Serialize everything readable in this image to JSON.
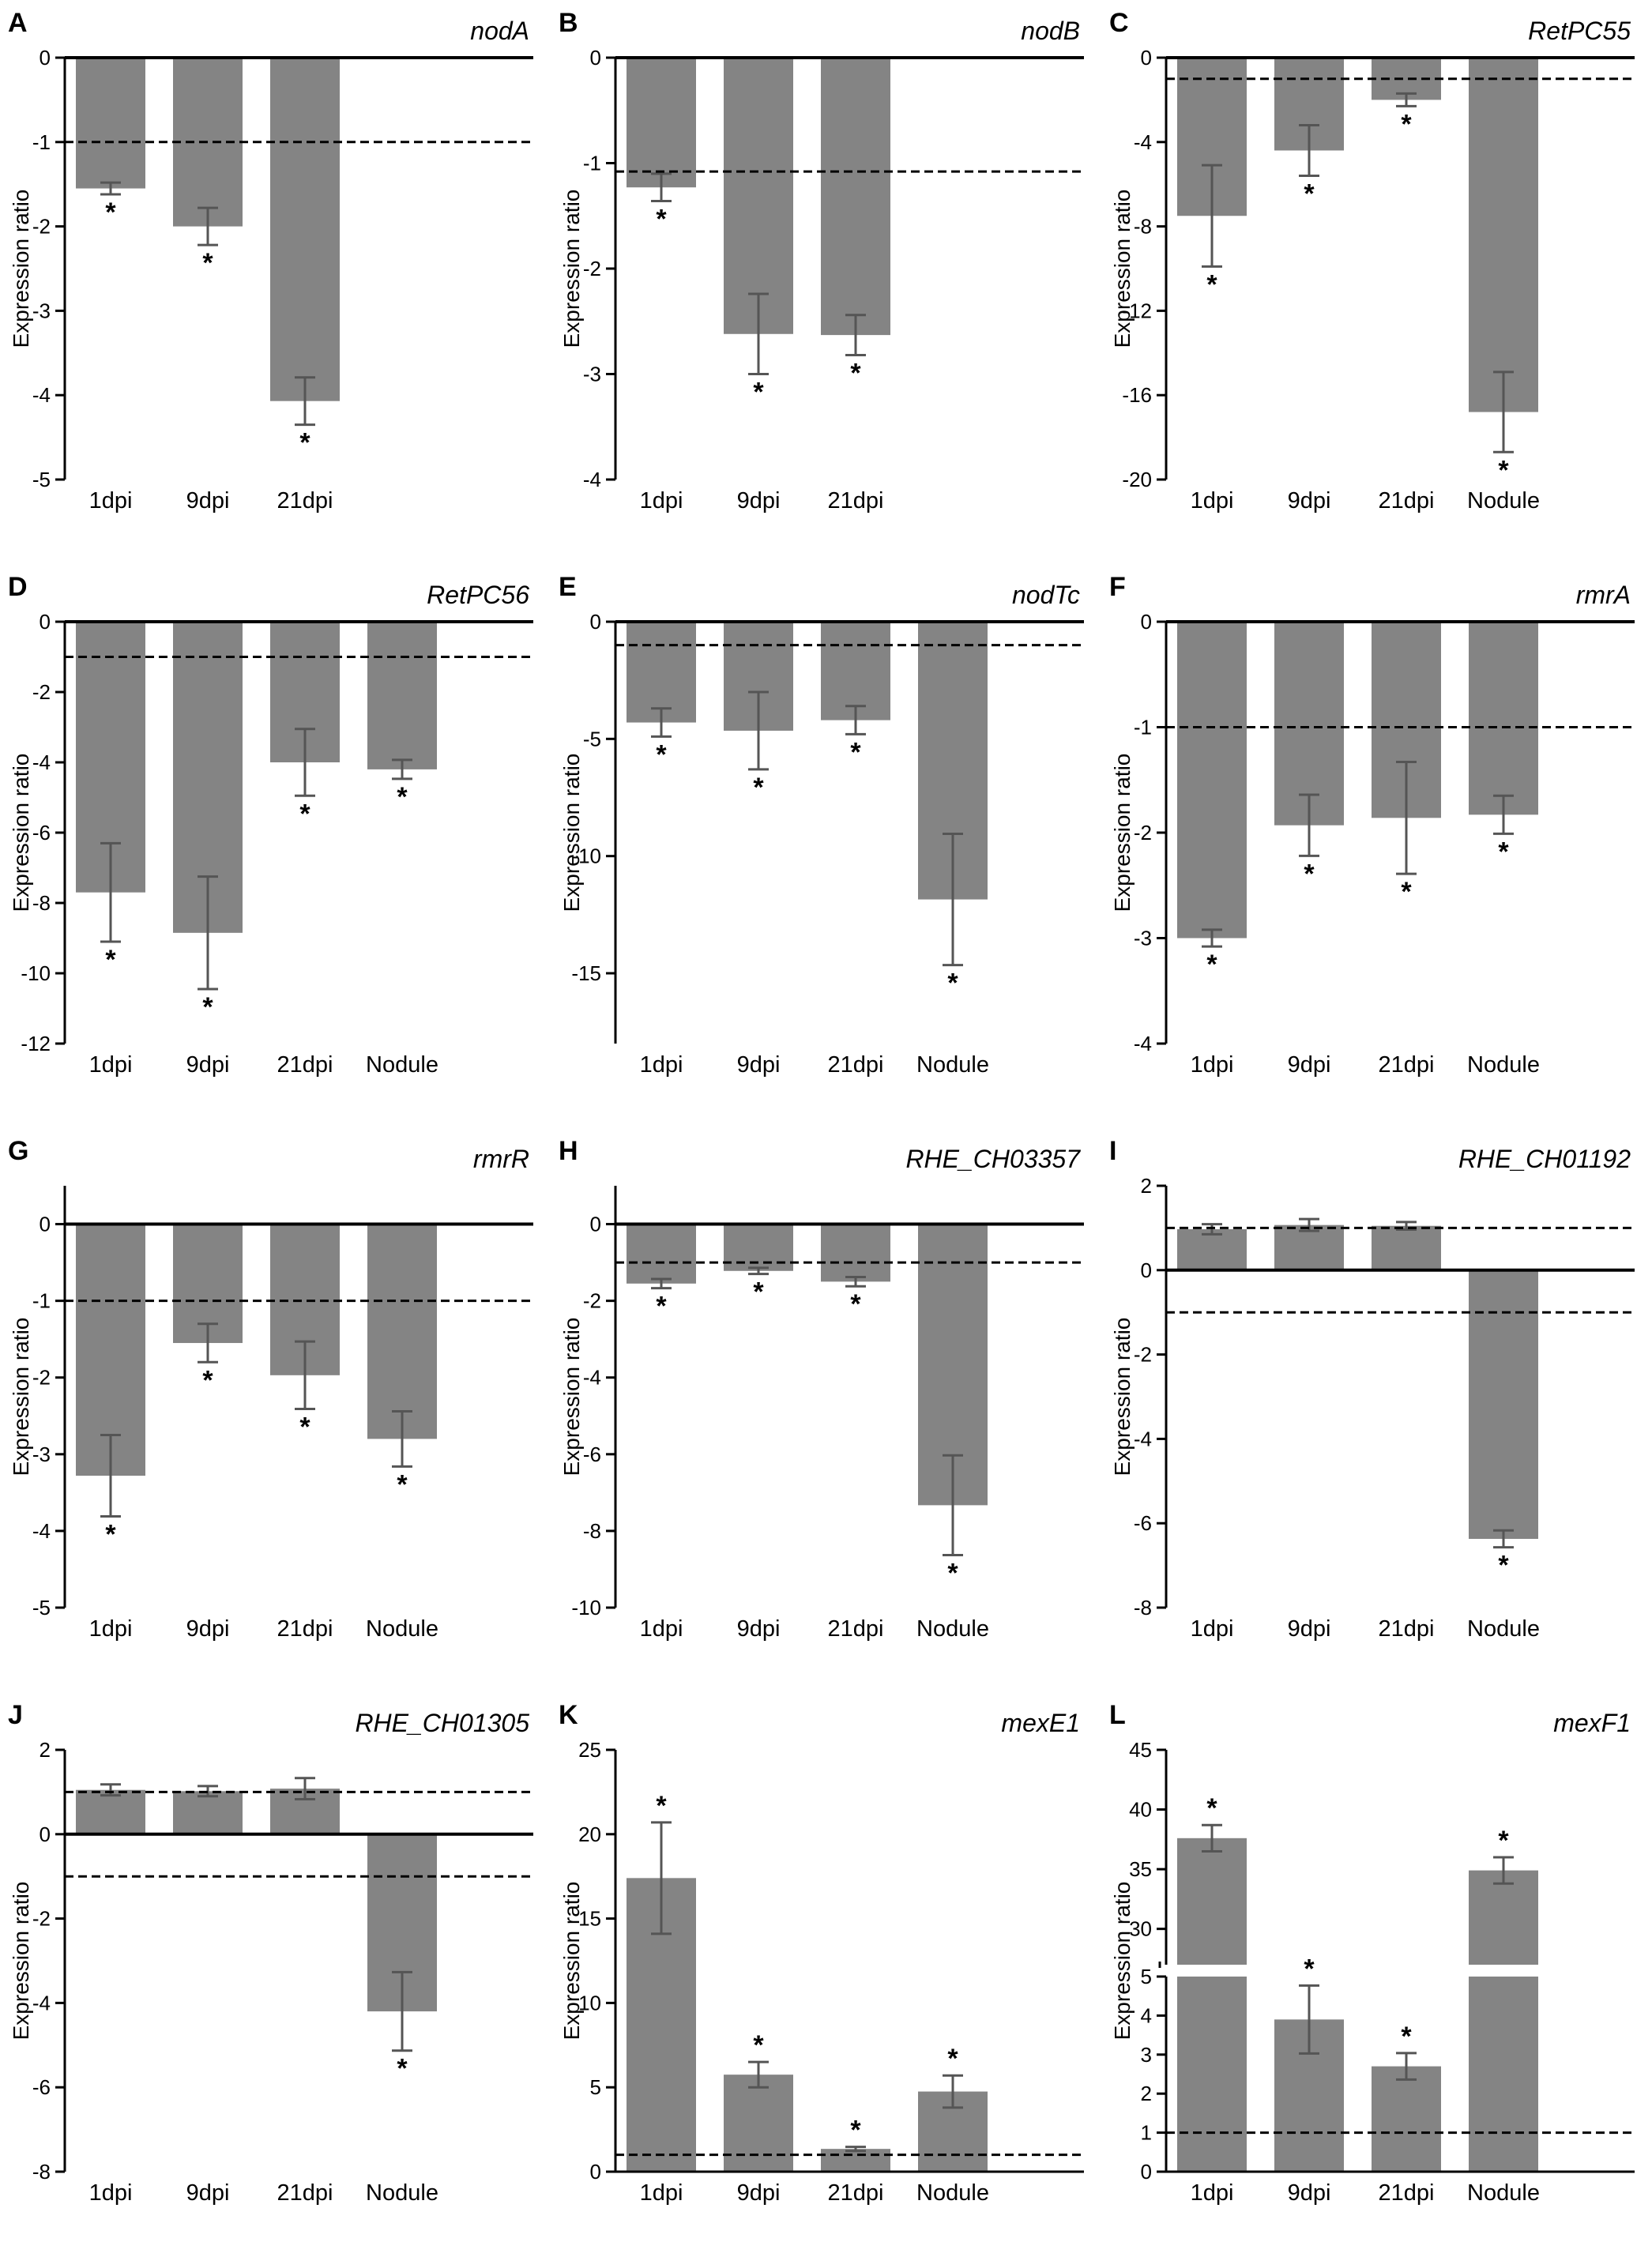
{
  "chart_data": [
    {
      "panel": "A",
      "type": "bar",
      "title": "nodA",
      "ylabel": "Expression ratio",
      "categories": [
        "1dpi",
        "9dpi",
        "21dpi"
      ],
      "values": [
        -1.55,
        -2.0,
        -4.07
      ],
      "errors": [
        0.07,
        0.22,
        0.28
      ],
      "significant": [
        true,
        true,
        true
      ],
      "ylim": [
        -5,
        0
      ],
      "yticks": [
        -5,
        -4,
        -3,
        -2,
        -1,
        0
      ],
      "threshold_lines": [
        -1
      ],
      "zero_line": true
    },
    {
      "panel": "B",
      "type": "bar",
      "title": "nodB",
      "ylabel": "Expression ratio",
      "categories": [
        "1dpi",
        "9dpi",
        "21dpi"
      ],
      "values": [
        -1.23,
        -2.62,
        -2.63
      ],
      "errors": [
        0.13,
        0.38,
        0.19
      ],
      "significant": [
        true,
        true,
        true
      ],
      "ylim": [
        -4,
        0
      ],
      "yticks": [
        -4,
        -3,
        -2,
        -1,
        0
      ],
      "threshold_lines": [
        -1.08
      ],
      "zero_line": true
    },
    {
      "panel": "C",
      "type": "bar",
      "title": "RetPC55",
      "ylabel": "Expression ratio",
      "categories": [
        "1dpi",
        "9dpi",
        "21dpi",
        "Nodule"
      ],
      "values": [
        -7.5,
        -4.4,
        -2.0,
        -16.8
      ],
      "errors": [
        2.4,
        1.2,
        0.3,
        1.9
      ],
      "significant": [
        true,
        true,
        true,
        true
      ],
      "ylim": [
        -20,
        0
      ],
      "yticks": [
        -20,
        -16,
        -12,
        -8,
        -4,
        0
      ],
      "threshold_lines": [
        -1
      ],
      "zero_line": true
    },
    {
      "panel": "D",
      "type": "bar",
      "title": "RetPC56",
      "ylabel": "Expression ratio",
      "categories": [
        "1dpi",
        "9dpi",
        "21dpi",
        "Nodule"
      ],
      "values": [
        -7.7,
        -8.85,
        -4.0,
        -4.2
      ],
      "errors": [
        1.4,
        1.6,
        0.95,
        0.27
      ],
      "significant": [
        true,
        true,
        true,
        true
      ],
      "ylim": [
        -12,
        0
      ],
      "yticks": [
        -12,
        -10,
        -8,
        -6,
        -4,
        -2,
        0
      ],
      "threshold_lines": [
        -1
      ],
      "zero_line": true
    },
    {
      "panel": "E",
      "type": "bar",
      "title": "nodTc",
      "ylabel": "Expression ratio",
      "categories": [
        "1dpi",
        "9dpi",
        "21dpi",
        "Nodule"
      ],
      "values": [
        -4.3,
        -4.65,
        -4.2,
        -11.85
      ],
      "errors": [
        0.6,
        1.65,
        0.6,
        2.8
      ],
      "significant": [
        true,
        true,
        true,
        true
      ],
      "ylim": [
        -18,
        0
      ],
      "yticks": [
        -15,
        -10,
        -5,
        0
      ],
      "threshold_lines": [
        -1
      ],
      "zero_line": true
    },
    {
      "panel": "F",
      "type": "bar",
      "title": "rmrA",
      "ylabel": "Expression ratio",
      "categories": [
        "1dpi",
        "9dpi",
        "21dpi",
        "Nodule"
      ],
      "values": [
        -3.0,
        -1.93,
        -1.86,
        -1.83
      ],
      "errors": [
        0.08,
        0.29,
        0.53,
        0.18
      ],
      "significant": [
        true,
        true,
        true,
        true
      ],
      "ylim": [
        -4,
        0
      ],
      "yticks": [
        -4,
        -3,
        -2,
        -1,
        0
      ],
      "threshold_lines": [
        -1
      ],
      "zero_line": true
    },
    {
      "panel": "G",
      "type": "bar",
      "title": "rmrR",
      "ylabel": "Expression ratio",
      "categories": [
        "1dpi",
        "9dpi",
        "21dpi",
        "Nodule"
      ],
      "values": [
        -3.28,
        -1.55,
        -1.97,
        -2.8
      ],
      "errors": [
        0.53,
        0.25,
        0.44,
        0.36
      ],
      "significant": [
        true,
        true,
        true,
        true
      ],
      "ylim": [
        -5,
        0.5
      ],
      "yticks": [
        -5,
        -4,
        -3,
        -2,
        -1,
        0
      ],
      "threshold_lines": [
        -1
      ],
      "zero_line": true
    },
    {
      "panel": "H",
      "type": "bar",
      "title": "RHE_CH03357",
      "ylabel": "Expression ratio",
      "categories": [
        "1dpi",
        "9dpi",
        "21dpi",
        "Nodule"
      ],
      "values": [
        -1.55,
        -1.22,
        -1.5,
        -7.33
      ],
      "errors": [
        0.12,
        0.08,
        0.12,
        1.3
      ],
      "significant": [
        true,
        true,
        true,
        true
      ],
      "ylim": [
        -10,
        1
      ],
      "yticks": [
        -10,
        -8,
        -6,
        -4,
        -2,
        0
      ],
      "threshold_lines": [
        -1
      ],
      "zero_line": true
    },
    {
      "panel": "I",
      "type": "bar",
      "title": "RHE_CH01192",
      "ylabel": "Expression ratio",
      "categories": [
        "1dpi",
        "9dpi",
        "21dpi",
        "Nodule"
      ],
      "values": [
        0.97,
        1.07,
        1.05,
        -6.37
      ],
      "errors": [
        0.12,
        0.14,
        0.09,
        0.2
      ],
      "significant": [
        false,
        false,
        false,
        true
      ],
      "ylim": [
        -8,
        2
      ],
      "yticks": [
        -8,
        -6,
        -4,
        -2,
        0,
        2
      ],
      "threshold_lines": [
        1,
        -1
      ],
      "zero_line": true
    },
    {
      "panel": "J",
      "type": "bar",
      "title": "RHE_CH01305",
      "ylabel": "Expression ratio",
      "categories": [
        "1dpi",
        "9dpi",
        "21dpi",
        "Nodule"
      ],
      "values": [
        1.05,
        1.02,
        1.08,
        -4.2
      ],
      "errors": [
        0.13,
        0.12,
        0.25,
        0.93
      ],
      "significant": [
        false,
        false,
        false,
        true
      ],
      "ylim": [
        -8,
        2
      ],
      "yticks": [
        -8,
        -6,
        -4,
        -2,
        0,
        2
      ],
      "threshold_lines": [
        1,
        -1
      ],
      "zero_line": true
    },
    {
      "panel": "K",
      "type": "bar",
      "title": "mexE1",
      "ylabel": "Expression ratio",
      "categories": [
        "1dpi",
        "9dpi",
        "21dpi",
        "Nodule"
      ],
      "values": [
        17.4,
        5.75,
        1.35,
        4.75
      ],
      "errors": [
        3.3,
        0.75,
        0.12,
        0.95
      ],
      "significant": [
        true,
        true,
        true,
        true
      ],
      "ylim": [
        0,
        25
      ],
      "yticks": [
        0,
        5,
        10,
        15,
        20,
        25
      ],
      "threshold_lines": [
        1
      ],
      "zero_line": false
    },
    {
      "panel": "L",
      "type": "bar",
      "title": "mexF1",
      "ylabel": "Expression ratio",
      "categories": [
        "1dpi",
        "9dpi",
        "21dpi",
        "Nodule"
      ],
      "values": [
        37.6,
        3.9,
        2.7,
        34.9
      ],
      "errors": [
        1.1,
        0.87,
        0.34,
        1.1
      ],
      "significant": [
        true,
        true,
        true,
        true
      ],
      "ylim": [
        0,
        45
      ],
      "broken_axis": {
        "lower": [
          0,
          5
        ],
        "upper": [
          27,
          45
        ]
      },
      "yticks_lower": [
        0,
        1,
        2,
        3,
        4,
        5
      ],
      "yticks_upper": [
        30,
        35,
        40,
        45
      ],
      "threshold_lines": [
        1
      ],
      "zero_line": false
    }
  ],
  "significance_mark": "*"
}
